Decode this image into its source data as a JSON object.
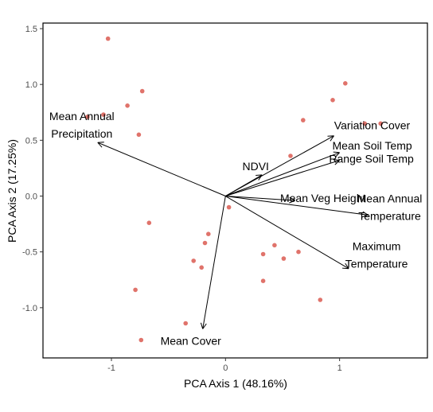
{
  "chart_data": {
    "type": "scatter",
    "xlabel": "PCA Axis 1 (48.16%)",
    "ylabel": "PCA Axis 2 (17.25%)",
    "xlim": [
      -1.6,
      1.77
    ],
    "ylim": [
      -1.45,
      1.55
    ],
    "x_ticks": [
      -1,
      0,
      1
    ],
    "x_tick_labels": [
      "-1",
      "0",
      "1"
    ],
    "y_ticks": [
      -1.0,
      -0.5,
      0.0,
      0.5,
      1.0,
      1.5
    ],
    "y_tick_labels": [
      "-1.0",
      "-0.5",
      "0.0",
      "0.5",
      "1.0",
      "1.5"
    ],
    "grid": false,
    "point_color": "#e0736b",
    "points": [
      {
        "x": -1.03,
        "y": 1.41
      },
      {
        "x": -1.21,
        "y": 0.71
      },
      {
        "x": -1.07,
        "y": 0.73
      },
      {
        "x": -0.86,
        "y": 0.81
      },
      {
        "x": -0.73,
        "y": 0.94
      },
      {
        "x": -0.76,
        "y": 0.55
      },
      {
        "x": -0.67,
        "y": -0.24
      },
      {
        "x": -0.79,
        "y": -0.84
      },
      {
        "x": -0.74,
        "y": -1.29
      },
      {
        "x": -0.35,
        "y": -1.14
      },
      {
        "x": -0.28,
        "y": -0.58
      },
      {
        "x": -0.21,
        "y": -0.64
      },
      {
        "x": -0.18,
        "y": -0.42
      },
      {
        "x": -0.15,
        "y": -0.34
      },
      {
        "x": 0.03,
        "y": -0.1
      },
      {
        "x": 0.33,
        "y": -0.52
      },
      {
        "x": 0.33,
        "y": -0.76
      },
      {
        "x": 0.43,
        "y": -0.44
      },
      {
        "x": 0.51,
        "y": -0.56
      },
      {
        "x": 0.64,
        "y": -0.5
      },
      {
        "x": 0.57,
        "y": 0.36
      },
      {
        "x": 0.68,
        "y": 0.68
      },
      {
        "x": 0.83,
        "y": -0.93
      },
      {
        "x": 0.94,
        "y": 0.86
      },
      {
        "x": 1.05,
        "y": 1.01
      },
      {
        "x": 1.22,
        "y": 0.65
      },
      {
        "x": 1.36,
        "y": 0.65
      }
    ],
    "vectors": [
      {
        "label_lines": [
          "Mean Annual",
          "Precipitation"
        ],
        "x": -1.12,
        "y": 0.48
      },
      {
        "label_lines": [
          "Variation Cover"
        ],
        "x": 0.95,
        "y": 0.54
      },
      {
        "label_lines": [
          "Mean Soil Temp"
        ],
        "x": 1.0,
        "y": 0.39
      },
      {
        "label_lines": [
          "Range Soil Temp"
        ],
        "x": 1.0,
        "y": 0.32
      },
      {
        "label_lines": [
          "NDVI"
        ],
        "x": 0.32,
        "y": 0.19
      },
      {
        "label_lines": [
          "Mean Veg Height"
        ],
        "x": 0.61,
        "y": -0.04
      },
      {
        "label_lines": [
          "Mean Annual",
          "Temperature"
        ],
        "x": 1.25,
        "y": -0.17
      },
      {
        "label_lines": [
          "Maximum",
          "Temperature"
        ],
        "x": 1.08,
        "y": -0.65
      },
      {
        "label_lines": [
          "Mean Cover"
        ],
        "x": -0.2,
        "y": -1.19
      }
    ]
  }
}
